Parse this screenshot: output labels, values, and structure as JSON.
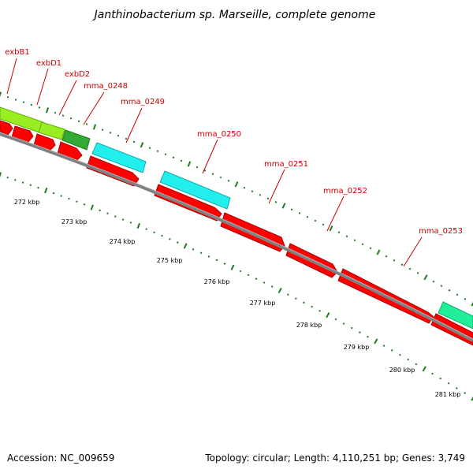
{
  "map": {
    "title": "Janthinobacterium sp. Marseille, complete genome",
    "accession": "Accession: NC_009659",
    "summary": "Topology: circular; Length: 4,110,251 bp; Genes: 3,749"
  },
  "colors": {
    "backbone": "#808080",
    "ticks": "#1f7a1f",
    "forward_strand": "#ff0000",
    "label": "#cc0000",
    "lime": "#99ee22",
    "green": "#33aa33",
    "cyan": "#22eeee",
    "aqua": "#22ee99"
  },
  "scale_ticks": [
    "272 kbp",
    "273 kbp",
    "274 kbp",
    "275 kbp",
    "276 kbp",
    "277 kbp",
    "278 kbp",
    "279 kbp",
    "280 kbp",
    "281 kbp"
  ],
  "gene_labels": [
    "exbB1",
    "exbD1",
    "exbD2",
    "mma_0248",
    "mma_0249",
    "mma_0250",
    "mma_0251",
    "mma_0252",
    "mma_0253"
  ]
}
